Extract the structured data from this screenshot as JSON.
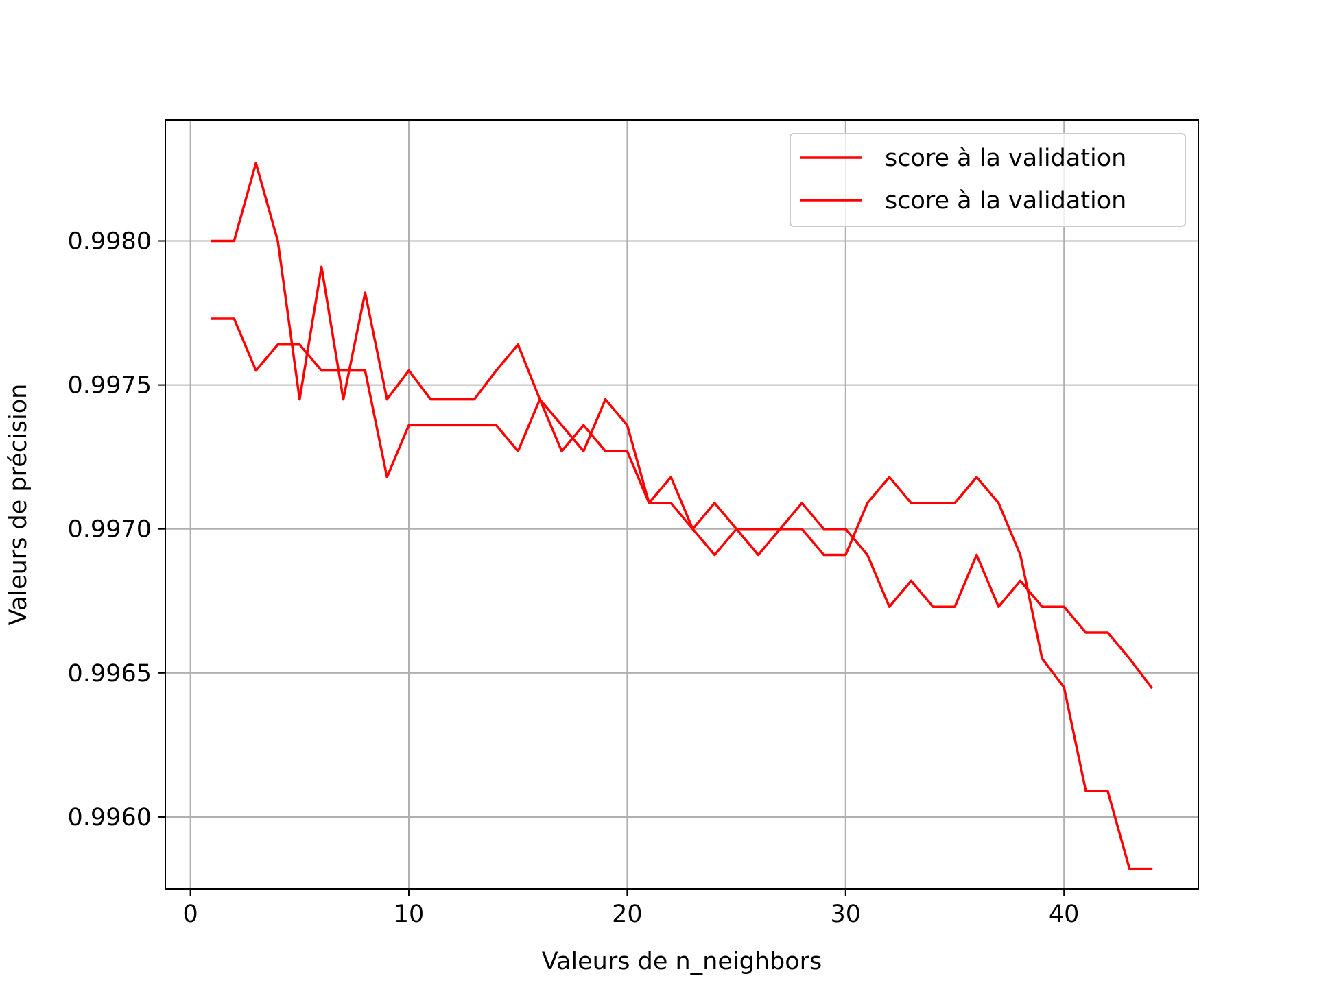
{
  "chart_data": {
    "type": "line",
    "xlabel": "Valeurs de n_neighbors",
    "ylabel": "Valeurs de précision",
    "xlim": [
      -1.15,
      46.15
    ],
    "ylim": [
      0.99575,
      0.99842
    ],
    "xticks": [
      0,
      10,
      20,
      30,
      40
    ],
    "xtick_labels": [
      "0",
      "10",
      "20",
      "30",
      "40"
    ],
    "yticks": [
      0.996,
      0.9965,
      0.997,
      0.9975,
      0.998
    ],
    "ytick_labels": [
      "0.9960",
      "0.9965",
      "0.9970",
      "0.9975",
      "0.9980"
    ],
    "grid": true,
    "legend_position": "top-right",
    "x": [
      1,
      2,
      3,
      4,
      5,
      6,
      7,
      8,
      9,
      10,
      11,
      12,
      13,
      14,
      15,
      16,
      17,
      18,
      19,
      20,
      21,
      22,
      23,
      24,
      25,
      26,
      27,
      28,
      29,
      30,
      31,
      32,
      33,
      34,
      35,
      36,
      37,
      38,
      39,
      40,
      41,
      42,
      43,
      44
    ],
    "series": [
      {
        "name": "score à la validation",
        "color": "#ff0000",
        "values": [
          0.998,
          0.998,
          0.99827,
          0.998,
          0.99745,
          0.99791,
          0.99745,
          0.99782,
          0.99745,
          0.99755,
          0.99745,
          0.99745,
          0.99745,
          0.99755,
          0.99764,
          0.99745,
          0.99736,
          0.99727,
          0.99745,
          0.99736,
          0.99709,
          0.99709,
          0.997,
          0.99709,
          0.997,
          0.997,
          0.997,
          0.997,
          0.99691,
          0.99691,
          0.99709,
          0.99718,
          0.99709,
          0.99709,
          0.99709,
          0.99718,
          0.99709,
          0.99691,
          0.99655,
          0.99645,
          0.99609,
          0.99609,
          0.99582,
          0.99582
        ]
      },
      {
        "name": "score à la validation",
        "color": "#ff0000",
        "values": [
          0.99773,
          0.99773,
          0.99755,
          0.99764,
          0.99764,
          0.99755,
          0.99755,
          0.99755,
          0.99718,
          0.99736,
          0.99736,
          0.99736,
          0.99736,
          0.99736,
          0.99727,
          0.99745,
          0.99727,
          0.99736,
          0.99727,
          0.99727,
          0.99709,
          0.99718,
          0.997,
          0.99691,
          0.997,
          0.99691,
          0.997,
          0.99709,
          0.997,
          0.997,
          0.99691,
          0.99673,
          0.99682,
          0.99673,
          0.99673,
          0.99691,
          0.99673,
          0.99682,
          0.99673,
          0.99673,
          0.99664,
          0.99664,
          0.99655,
          0.99645
        ]
      }
    ]
  }
}
